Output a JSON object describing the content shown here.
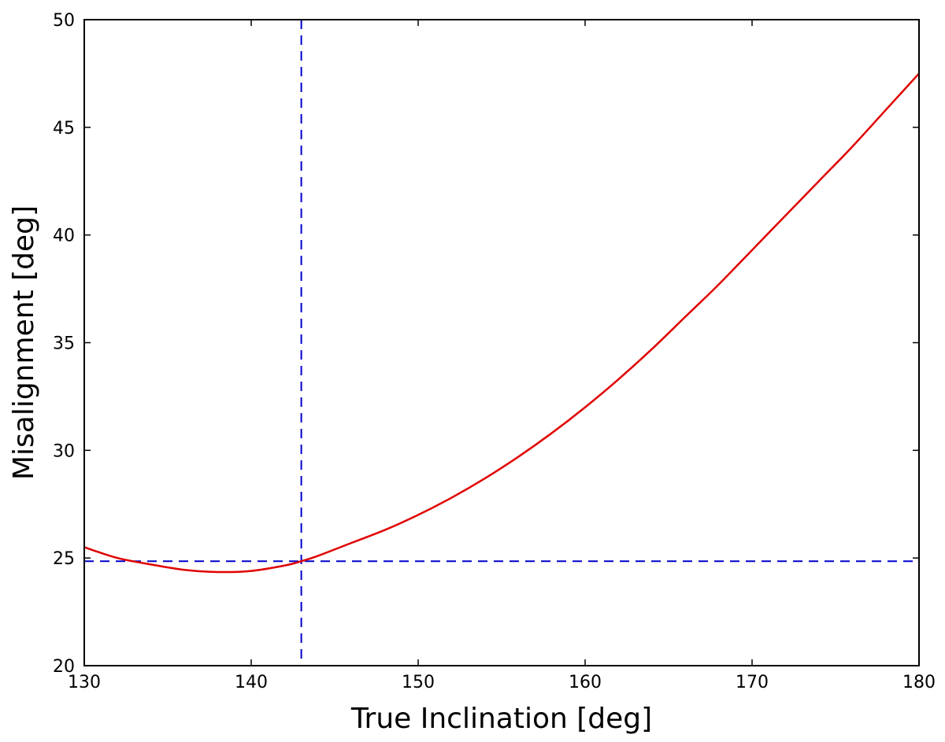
{
  "chart_data": {
    "type": "line",
    "title": "",
    "xlabel": "True Inclination [deg]",
    "ylabel": "Misalignment [deg]",
    "xlim": [
      130,
      180
    ],
    "ylim": [
      20,
      50
    ],
    "xticks": [
      130,
      140,
      150,
      160,
      170,
      180
    ],
    "yticks": [
      20,
      25,
      30,
      35,
      40,
      45,
      50
    ],
    "xtick_labels": [
      "130",
      "140",
      "150",
      "160",
      "170",
      "180"
    ],
    "ytick_labels": [
      "20",
      "25",
      "30",
      "35",
      "40",
      "45",
      "50"
    ],
    "grid": false,
    "legend": "none",
    "series": [
      {
        "color": "#e00000",
        "style": "solid",
        "x": [
          130,
          132,
          134,
          136,
          138,
          140,
          142,
          143,
          144,
          146,
          148,
          150,
          152,
          154,
          156,
          158,
          160,
          162,
          164,
          166,
          168,
          170,
          172,
          174,
          176,
          178,
          180
        ],
        "y": [
          25.5,
          25.0,
          24.7,
          24.45,
          24.35,
          24.4,
          24.65,
          24.85,
          25.1,
          25.7,
          26.3,
          27.0,
          27.8,
          28.7,
          29.7,
          30.8,
          32.0,
          33.3,
          34.7,
          36.2,
          37.7,
          39.3,
          40.9,
          42.5,
          44.1,
          45.8,
          47.5
        ]
      }
    ],
    "reference_lines": [
      {
        "orientation": "vertical",
        "x": 143.0,
        "color": "#0000cc",
        "style": "dashed"
      },
      {
        "orientation": "horizontal",
        "y": 24.85,
        "color": "#0000cc",
        "style": "dashed"
      }
    ]
  }
}
